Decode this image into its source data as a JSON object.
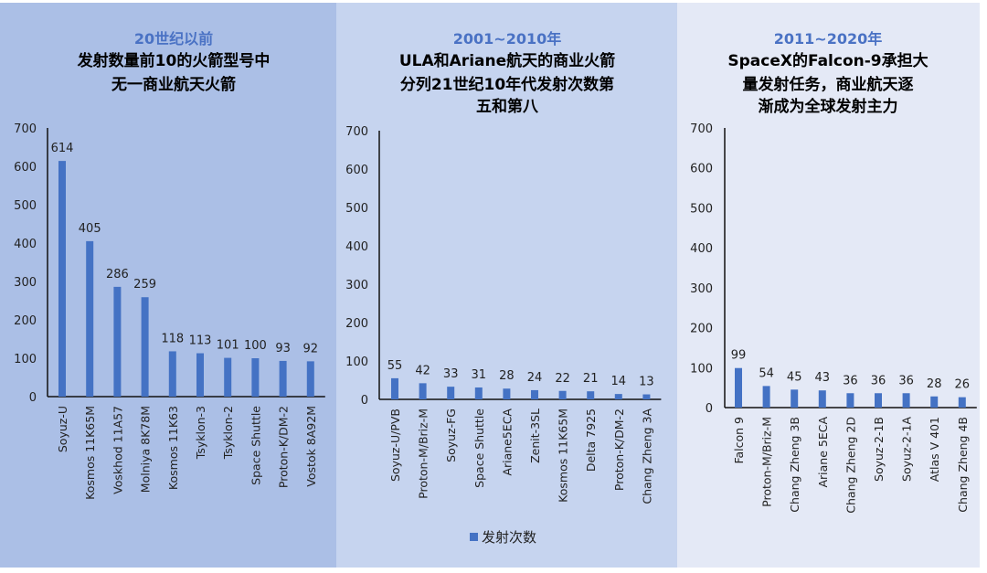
{
  "chart_data": [
    {
      "type": "bar",
      "period": "20世纪以前",
      "title_lines": [
        "发射数量前10的火箭型号中",
        "无一商业航天火箭"
      ],
      "categories": [
        "Soyuz-U",
        "Kosmos 11K65M",
        "Voskhod 11A57",
        "Molniya 8K78M",
        "Kosmos 11K63",
        "Tsyklon-3",
        "Tsyklon-2",
        "Space Shuttle",
        "Proton-K/DM-2",
        "Vostok 8A92M"
      ],
      "values": [
        614,
        405,
        286,
        259,
        118,
        113,
        101,
        100,
        93,
        92
      ],
      "ylim": [
        0,
        700
      ],
      "yticks": [
        0,
        100,
        200,
        300,
        400,
        500,
        600,
        700
      ],
      "grid": false,
      "background": "#abbfe6"
    },
    {
      "type": "bar",
      "period": "2001~2010年",
      "title_lines": [
        "ULA和Ariane航天的商业火箭",
        "分列21世纪10年代发射次数第",
        "五和第八"
      ],
      "categories": [
        "Soyuz-U/PVB",
        "Proton-M/Briz-M",
        "Soyuz-FG",
        "Space Shuttle",
        "Ariane5ECA",
        "Zenit-3SL",
        "Kosmos 11K65M",
        "Delta 7925",
        "Proton-K/DM-2",
        "Chang Zheng 3A"
      ],
      "values": [
        55,
        42,
        33,
        31,
        28,
        24,
        22,
        21,
        14,
        13
      ],
      "ylim": [
        0,
        700
      ],
      "yticks": [
        0,
        100,
        200,
        300,
        400,
        500,
        600,
        700
      ],
      "grid": false,
      "legend": {
        "label": "发射次数",
        "placement": "bottom"
      },
      "background": "#c6d4ef"
    },
    {
      "type": "bar",
      "period": "2011~2020年",
      "title_lines": [
        "SpaceX的Falcon-9承担大",
        "量发射任务，商业航天逐",
        "渐成为全球发射主力"
      ],
      "categories": [
        "Falcon 9",
        "Proton-M/Briz-M",
        "Chang Zheng 3B",
        "Ariane 5ECA",
        "Chang Zheng 2D",
        "Soyuz-2-1B",
        "Soyuz-2-1A",
        "Atlas V 401",
        "Chang Zheng 4B"
      ],
      "values": [
        99,
        54,
        45,
        43,
        36,
        36,
        36,
        28,
        26
      ],
      "ylim": [
        0,
        700
      ],
      "yticks": [
        0,
        100,
        200,
        300,
        400,
        500,
        600,
        700
      ],
      "grid": false,
      "background": "#e4e9f6"
    }
  ],
  "colors": {
    "bar": "#4472c4",
    "period_title": "#4a72c4",
    "text": "#000000"
  }
}
